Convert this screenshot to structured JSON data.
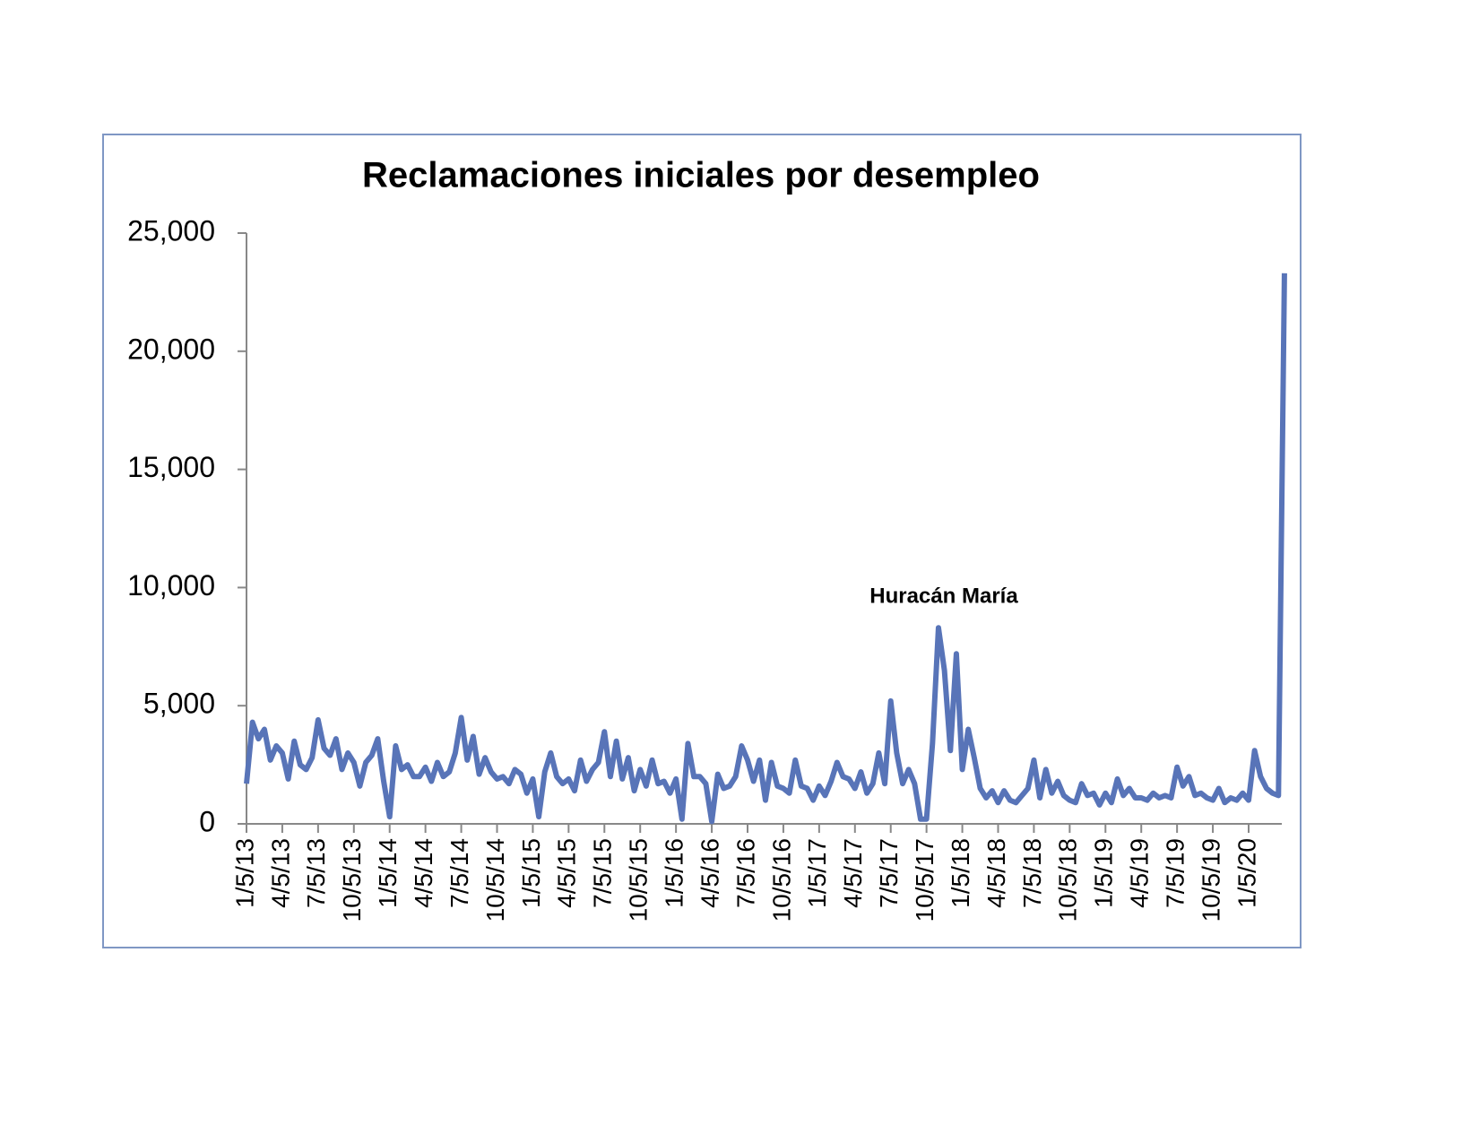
{
  "chart_data": {
    "type": "line",
    "title": "Reclamaciones iniciales por desempleo",
    "annotation": "Huracán María",
    "categories": [
      "1/5/13",
      null,
      null,
      null,
      null,
      null,
      "4/5/13",
      null,
      null,
      null,
      null,
      null,
      "7/5/13",
      null,
      null,
      null,
      null,
      null,
      "10/5/13",
      null,
      null,
      null,
      null,
      null,
      "1/5/14",
      null,
      null,
      null,
      null,
      null,
      "4/5/14",
      null,
      null,
      null,
      null,
      null,
      "7/5/14",
      null,
      null,
      null,
      null,
      null,
      "10/5/14",
      null,
      null,
      null,
      null,
      null,
      "1/5/15",
      null,
      null,
      null,
      null,
      null,
      "4/5/15",
      null,
      null,
      null,
      null,
      null,
      "7/5/15",
      null,
      null,
      null,
      null,
      null,
      "10/5/15",
      null,
      null,
      null,
      null,
      null,
      "1/5/16",
      null,
      null,
      null,
      null,
      null,
      "4/5/16",
      null,
      null,
      null,
      null,
      null,
      "7/5/16",
      null,
      null,
      null,
      null,
      null,
      "10/5/16",
      null,
      null,
      null,
      null,
      null,
      "1/5/17",
      null,
      null,
      null,
      null,
      null,
      "4/5/17",
      null,
      null,
      null,
      null,
      null,
      "7/5/17",
      null,
      null,
      null,
      null,
      null,
      "10/5/17",
      null,
      null,
      null,
      null,
      null,
      "1/5/18",
      null,
      null,
      null,
      null,
      null,
      "4/5/18",
      null,
      null,
      null,
      null,
      null,
      "7/5/18",
      null,
      null,
      null,
      null,
      null,
      "10/5/18",
      null,
      null,
      null,
      null,
      null,
      "1/5/19",
      null,
      null,
      null,
      null,
      null,
      "4/5/19",
      null,
      null,
      null,
      null,
      null,
      "7/5/19",
      null,
      null,
      null,
      null,
      null,
      "10/5/19",
      null,
      null,
      null,
      null,
      null,
      "1/5/20",
      null,
      null,
      null,
      null,
      null,
      null
    ],
    "series": [
      {
        "name": "Reclamaciones iniciales",
        "color": "#5874b8",
        "values": [
          1700,
          4300,
          3600,
          4000,
          2700,
          3300,
          3000,
          1900,
          3500,
          2500,
          2300,
          2800,
          4400,
          3200,
          2900,
          3600,
          2300,
          3000,
          2600,
          1600,
          2600,
          2900,
          3600,
          1800,
          300,
          3300,
          2300,
          2500,
          2000,
          2000,
          2400,
          1800,
          2600,
          2000,
          2200,
          3000,
          4500,
          2700,
          3700,
          2100,
          2800,
          2200,
          1900,
          2000,
          1700,
          2300,
          2100,
          1300,
          1900,
          300,
          2200,
          3000,
          2000,
          1700,
          1900,
          1400,
          2700,
          1800,
          2300,
          2600,
          3900,
          2000,
          3500,
          1900,
          2800,
          1400,
          2300,
          1600,
          2700,
          1700,
          1800,
          1300,
          1900,
          200,
          3400,
          2000,
          2000,
          1700,
          100,
          2100,
          1500,
          1600,
          2000,
          3300,
          2700,
          1800,
          2700,
          1000,
          2600,
          1600,
          1500,
          1300,
          2700,
          1600,
          1500,
          1000,
          1600,
          1200,
          1800,
          2600,
          2000,
          1900,
          1500,
          2200,
          1300,
          1700,
          3000,
          1700,
          5200,
          3000,
          1700,
          2300,
          1700,
          200,
          200,
          3400,
          8300,
          6500,
          3100,
          7200,
          2300,
          4000,
          2800,
          1500,
          1100,
          1400,
          900,
          1400,
          1000,
          900,
          1200,
          1500,
          2700,
          1100,
          2300,
          1300,
          1800,
          1200,
          1000,
          900,
          1700,
          1200,
          1300,
          800,
          1300,
          900,
          1900,
          1200,
          1500,
          1100,
          1100,
          1000,
          1300,
          1100,
          1200,
          1100,
          2400,
          1600,
          2000,
          1200,
          1300,
          1100,
          1000,
          1500,
          900,
          1100,
          1000,
          1300,
          1000,
          3100,
          2000,
          1500,
          1300,
          1200,
          23300
        ]
      }
    ],
    "ylim": [
      0,
      25000
    ],
    "yticks": [
      0,
      {
        "value": 5000,
        "label": "5,000"
      },
      {
        "value": 10000,
        "label": "10,000"
      },
      {
        "value": 15000,
        "label": "15,000"
      },
      {
        "value": 20000,
        "label": "20,000"
      },
      {
        "value": 25000,
        "label": "25,000"
      }
    ],
    "grid": false
  }
}
